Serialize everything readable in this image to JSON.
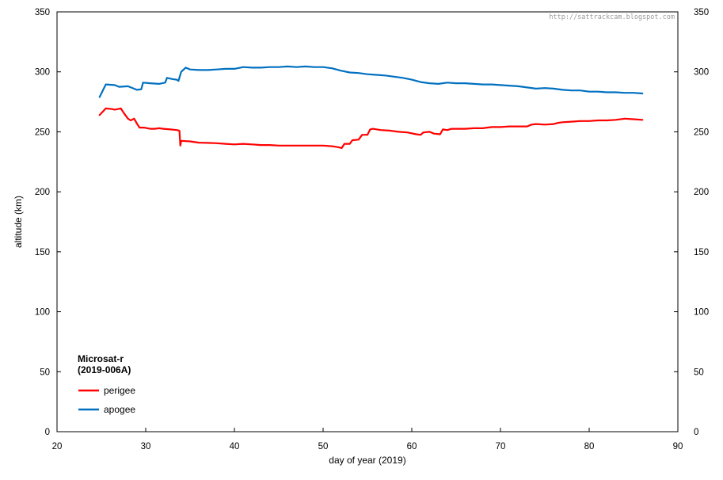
{
  "chart_data": {
    "type": "line",
    "title": "",
    "xlabel": "day of year (2019)",
    "ylabel": "altitude (km)",
    "xlim": [
      20,
      90
    ],
    "ylim": [
      0,
      350
    ],
    "xticks": [
      20,
      30,
      40,
      50,
      60,
      70,
      80,
      90
    ],
    "yticks": [
      0,
      50,
      100,
      150,
      200,
      250,
      300,
      350
    ],
    "grid": false,
    "watermark": "http://sattrackcam.blogspot.com",
    "legend": {
      "title_line1": "Microsat-r",
      "title_line2": "(2019-006A)",
      "placement": "bottom-left"
    },
    "series": [
      {
        "name": "perigee",
        "color": "#ff0000",
        "points": [
          [
            24.8,
            264
          ],
          [
            25.5,
            269.5
          ],
          [
            26.2,
            269
          ],
          [
            26.5,
            268.5
          ],
          [
            27.2,
            269.5
          ],
          [
            27.5,
            266
          ],
          [
            28.0,
            261
          ],
          [
            28.3,
            259.5
          ],
          [
            28.7,
            261
          ],
          [
            29.0,
            257
          ],
          [
            29.3,
            253.5
          ],
          [
            29.8,
            253.5
          ],
          [
            30.5,
            252.5
          ],
          [
            31.0,
            252.5
          ],
          [
            31.5,
            253
          ],
          [
            32.0,
            252.5
          ],
          [
            32.8,
            252
          ],
          [
            33.5,
            251.5
          ],
          [
            33.8,
            251
          ],
          [
            33.9,
            238.5
          ],
          [
            34.0,
            242.5
          ],
          [
            35.0,
            242
          ],
          [
            36.0,
            241
          ],
          [
            37.0,
            240.8
          ],
          [
            38.0,
            240.5
          ],
          [
            39.0,
            240
          ],
          [
            40.0,
            239.5
          ],
          [
            41.0,
            240
          ],
          [
            42.0,
            239.5
          ],
          [
            43.0,
            239
          ],
          [
            44.0,
            239
          ],
          [
            45.0,
            238.5
          ],
          [
            46.0,
            238.5
          ],
          [
            47.0,
            238.5
          ],
          [
            48.0,
            238.5
          ],
          [
            49.0,
            238.5
          ],
          [
            50.0,
            238.5
          ],
          [
            51.0,
            238
          ],
          [
            51.8,
            237
          ],
          [
            52.1,
            236.5
          ],
          [
            52.4,
            240
          ],
          [
            53.0,
            240
          ],
          [
            53.3,
            243
          ],
          [
            54.0,
            243.5
          ],
          [
            54.4,
            247.5
          ],
          [
            55.0,
            247.5
          ],
          [
            55.3,
            252
          ],
          [
            55.6,
            252.5
          ],
          [
            56.5,
            251.5
          ],
          [
            57.5,
            251
          ],
          [
            58.5,
            250
          ],
          [
            59.5,
            249.5
          ],
          [
            60.5,
            248
          ],
          [
            61.0,
            247.5
          ],
          [
            61.3,
            249.5
          ],
          [
            62.0,
            250
          ],
          [
            62.5,
            248.5
          ],
          [
            63.2,
            248
          ],
          [
            63.5,
            252
          ],
          [
            64.0,
            251.5
          ],
          [
            64.5,
            252.5
          ],
          [
            66.0,
            252.5
          ],
          [
            67.0,
            253
          ],
          [
            68.0,
            253
          ],
          [
            69.0,
            254
          ],
          [
            70.0,
            254
          ],
          [
            71.0,
            254.5
          ],
          [
            72.0,
            254.5
          ],
          [
            73.0,
            254.5
          ],
          [
            73.5,
            256
          ],
          [
            74.0,
            256.5
          ],
          [
            75.0,
            256
          ],
          [
            76.0,
            256.5
          ],
          [
            76.5,
            257.5
          ],
          [
            77.0,
            258
          ],
          [
            78.0,
            258.5
          ],
          [
            79.0,
            259
          ],
          [
            80.0,
            259
          ],
          [
            81.0,
            259.5
          ],
          [
            82.0,
            259.5
          ],
          [
            83.0,
            260
          ],
          [
            84.0,
            261
          ],
          [
            85.0,
            260.5
          ],
          [
            86.0,
            260
          ]
        ]
      },
      {
        "name": "apogee",
        "color": "#0070c0",
        "points": [
          [
            24.8,
            279
          ],
          [
            25.5,
            289.5
          ],
          [
            26.5,
            289
          ],
          [
            27.0,
            287.5
          ],
          [
            28.0,
            288
          ],
          [
            29.0,
            285
          ],
          [
            29.5,
            285.5
          ],
          [
            29.7,
            291
          ],
          [
            30.5,
            290.5
          ],
          [
            31.5,
            290
          ],
          [
            32.2,
            291
          ],
          [
            32.4,
            295
          ],
          [
            33.0,
            294
          ],
          [
            33.5,
            293.5
          ],
          [
            33.7,
            292.5
          ],
          [
            34.0,
            300
          ],
          [
            34.5,
            303.5
          ],
          [
            35.0,
            302
          ],
          [
            36.0,
            301.5
          ],
          [
            37.0,
            301.5
          ],
          [
            38.0,
            302
          ],
          [
            39.0,
            302.5
          ],
          [
            40.0,
            302.5
          ],
          [
            41.0,
            304
          ],
          [
            42.0,
            303.5
          ],
          [
            43.0,
            303.5
          ],
          [
            44.0,
            304
          ],
          [
            45.0,
            304
          ],
          [
            46.0,
            304.5
          ],
          [
            47.0,
            304
          ],
          [
            48.0,
            304.5
          ],
          [
            49.0,
            304
          ],
          [
            50.0,
            304
          ],
          [
            51.0,
            303
          ],
          [
            52.0,
            301
          ],
          [
            53.0,
            299.5
          ],
          [
            54.0,
            299
          ],
          [
            55.0,
            298
          ],
          [
            56.0,
            297.5
          ],
          [
            57.0,
            297
          ],
          [
            58.0,
            296
          ],
          [
            59.0,
            295
          ],
          [
            60.0,
            293.5
          ],
          [
            61.0,
            291.5
          ],
          [
            62.0,
            290.5
          ],
          [
            63.0,
            290
          ],
          [
            64.0,
            291
          ],
          [
            65.0,
            290.5
          ],
          [
            66.0,
            290.5
          ],
          [
            67.0,
            290
          ],
          [
            68.0,
            289.5
          ],
          [
            69.0,
            289.5
          ],
          [
            70.0,
            289
          ],
          [
            71.0,
            288.5
          ],
          [
            72.0,
            288
          ],
          [
            73.0,
            287
          ],
          [
            74.0,
            286
          ],
          [
            75.0,
            286.5
          ],
          [
            76.0,
            286
          ],
          [
            77.0,
            285
          ],
          [
            78.0,
            284.5
          ],
          [
            79.0,
            284.5
          ],
          [
            80.0,
            283.5
          ],
          [
            81.0,
            283.5
          ],
          [
            82.0,
            283
          ],
          [
            83.0,
            283
          ],
          [
            84.0,
            282.5
          ],
          [
            85.0,
            282.5
          ],
          [
            86.0,
            282
          ]
        ]
      }
    ]
  }
}
